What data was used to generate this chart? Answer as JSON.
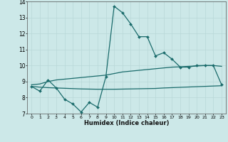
{
  "xlabel": "Humidex (Indice chaleur)",
  "bg_color": "#cce8e8",
  "line_color": "#1a6b6b",
  "grid_color": "#b8d8d8",
  "xlim": [
    -0.5,
    23.5
  ],
  "ylim": [
    7,
    14
  ],
  "xticks": [
    0,
    1,
    2,
    3,
    4,
    5,
    6,
    7,
    8,
    9,
    10,
    11,
    12,
    13,
    14,
    15,
    16,
    17,
    18,
    19,
    20,
    21,
    22,
    23
  ],
  "yticks": [
    7,
    8,
    9,
    10,
    11,
    12,
    13,
    14
  ],
  "series1_x": [
    0,
    1,
    2,
    3,
    4,
    5,
    6,
    7,
    8,
    9,
    10,
    11,
    12,
    13,
    14,
    15,
    16,
    17,
    18,
    19,
    20,
    21,
    22,
    23
  ],
  "series1_y": [
    8.7,
    8.4,
    9.1,
    8.6,
    7.9,
    7.6,
    7.1,
    7.7,
    7.4,
    9.3,
    13.7,
    13.3,
    12.6,
    11.8,
    11.8,
    10.6,
    10.8,
    10.4,
    9.9,
    9.9,
    10.0,
    10.0,
    10.0,
    8.8
  ],
  "series2_x": [
    0,
    1,
    2,
    3,
    4,
    5,
    6,
    7,
    8,
    9,
    10,
    11,
    12,
    13,
    14,
    15,
    16,
    17,
    18,
    19,
    20,
    21,
    22,
    23
  ],
  "series2_y": [
    8.8,
    8.85,
    9.0,
    9.1,
    9.15,
    9.2,
    9.25,
    9.3,
    9.35,
    9.4,
    9.5,
    9.6,
    9.65,
    9.7,
    9.75,
    9.8,
    9.85,
    9.9,
    9.92,
    9.95,
    9.97,
    10.0,
    10.0,
    9.95
  ],
  "series3_x": [
    0,
    1,
    2,
    3,
    4,
    5,
    6,
    7,
    8,
    9,
    10,
    11,
    12,
    13,
    14,
    15,
    16,
    17,
    18,
    19,
    20,
    21,
    22,
    23
  ],
  "series3_y": [
    8.7,
    8.65,
    8.62,
    8.6,
    8.58,
    8.56,
    8.54,
    8.53,
    8.52,
    8.52,
    8.52,
    8.53,
    8.54,
    8.55,
    8.56,
    8.57,
    8.6,
    8.62,
    8.64,
    8.66,
    8.68,
    8.7,
    8.72,
    8.74
  ]
}
